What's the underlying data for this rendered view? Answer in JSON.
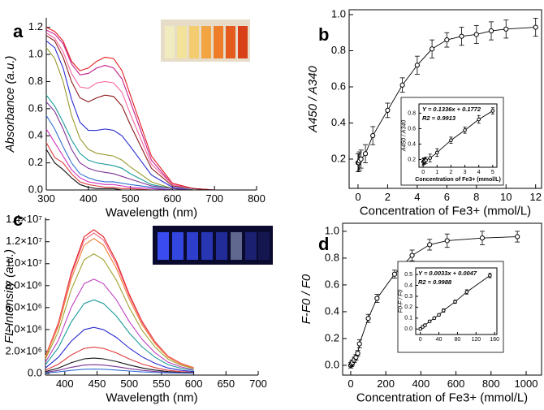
{
  "chart_data": [
    {
      "type": "line",
      "panel": "a",
      "xlabel": "Wavelength (nm)",
      "ylabel": "Absorbance (a.u.)",
      "x": [
        300,
        320,
        340,
        360,
        380,
        400,
        420,
        440,
        460,
        480,
        500,
        550,
        600,
        650,
        700
      ],
      "xlim": [
        300,
        800
      ],
      "xticks": [
        300,
        400,
        500,
        600,
        700,
        800
      ],
      "ylim": [
        0,
        1.27
      ],
      "yticks": [
        {
          "value": 0,
          "label": "0.0"
        },
        0.2,
        0.4,
        0.6,
        0.8,
        {
          "value": 1,
          "label": "1.0"
        },
        1.2
      ],
      "series": [
        {
          "color": "#e31a1c",
          "values": [
            1.2,
            1.17,
            1.1,
            0.95,
            0.88,
            0.9,
            0.95,
            0.98,
            0.97,
            0.88,
            0.7,
            0.25,
            0.05,
            0.01,
            0
          ]
        },
        {
          "color": "#c51b8a",
          "values": [
            1.18,
            1.15,
            1.08,
            0.93,
            0.85,
            0.86,
            0.9,
            0.92,
            0.9,
            0.82,
            0.65,
            0.22,
            0.04,
            0.01,
            0
          ]
        },
        {
          "color": "#f768a1",
          "values": [
            1.16,
            1.12,
            1.02,
            0.86,
            0.76,
            0.75,
            0.79,
            0.8,
            0.79,
            0.72,
            0.56,
            0.19,
            0.04,
            0.01,
            0
          ]
        },
        {
          "color": "#8b1a1a",
          "values": [
            1.14,
            1.1,
            0.98,
            0.8,
            0.68,
            0.65,
            0.68,
            0.7,
            0.69,
            0.62,
            0.48,
            0.16,
            0.03,
            0.01,
            0
          ]
        },
        {
          "color": "#2b2bd0",
          "values": [
            1.1,
            1.05,
            0.9,
            0.67,
            0.5,
            0.44,
            0.44,
            0.45,
            0.44,
            0.4,
            0.32,
            0.11,
            0.02,
            0,
            0
          ]
        },
        {
          "color": "#9a9a30",
          "values": [
            1.05,
            0.97,
            0.8,
            0.55,
            0.38,
            0.3,
            0.27,
            0.26,
            0.25,
            0.22,
            0.17,
            0.06,
            0.01,
            0,
            0
          ]
        },
        {
          "color": "#1a9a9a",
          "values": [
            0.7,
            0.62,
            0.5,
            0.37,
            0.27,
            0.22,
            0.2,
            0.19,
            0.18,
            0.16,
            0.12,
            0.04,
            0.01,
            0,
            0
          ]
        },
        {
          "color": "#7b3294",
          "values": [
            0.65,
            0.58,
            0.45,
            0.3,
            0.2,
            0.16,
            0.14,
            0.13,
            0.12,
            0.1,
            0.08,
            0.03,
            0.01,
            0,
            0
          ]
        },
        {
          "color": "#3070d0",
          "values": [
            0.55,
            0.45,
            0.32,
            0.2,
            0.12,
            0.09,
            0.07,
            0.06,
            0.06,
            0.05,
            0.04,
            0.02,
            0,
            0,
            0
          ]
        },
        {
          "color": "#d030c0",
          "values": [
            0.45,
            0.35,
            0.25,
            0.15,
            0.09,
            0.06,
            0.05,
            0.04,
            0.04,
            0.03,
            0.02,
            0.01,
            0,
            0,
            0
          ]
        },
        {
          "color": "#e04040",
          "values": [
            0.35,
            0.24,
            0.2,
            0.12,
            0.06,
            0.04,
            0.03,
            0.02,
            0.02,
            0.01,
            0.01,
            0,
            0,
            0,
            0
          ]
        },
        {
          "color": "#111111",
          "values": [
            0.3,
            0.2,
            0.15,
            0.09,
            0.04,
            0.02,
            0.01,
            0.01,
            0.01,
            0,
            0,
            0,
            0,
            0,
            0
          ]
        }
      ]
    },
    {
      "type": "scatter",
      "panel": "b",
      "xlabel": "Concentration of Fe3+ (mmol/L)",
      "ylabel": "A450 / A340",
      "x": [
        0,
        0.05,
        0.1,
        0.2,
        0.5,
        1,
        2,
        3,
        4,
        5,
        6,
        7,
        8,
        9,
        10,
        12
      ],
      "xlim": [
        -0.6,
        12.4
      ],
      "xticks": [
        0,
        2,
        4,
        6,
        8,
        10,
        12
      ],
      "ylim": [
        0.038,
        1.027
      ],
      "yticks": [
        0.2,
        0.4,
        0.6,
        0.8,
        {
          "value": 1,
          "label": "1.0"
        }
      ],
      "series": [
        {
          "color": "#000000",
          "values": [
            0.18,
            0.18,
            0.19,
            0.2,
            0.23,
            0.33,
            0.47,
            0.61,
            0.72,
            0.81,
            0.86,
            0.88,
            0.89,
            0.91,
            0.92,
            0.93
          ],
          "errors": [
            0.05,
            0.05,
            0.05,
            0.05,
            0.05,
            0.05,
            0.04,
            0.04,
            0.05,
            0.05,
            0.04,
            0.05,
            0.05,
            0.05,
            0.05,
            0.05
          ]
        }
      ],
      "inset": {
        "type": "scatter",
        "xlabel": "Concentration of Fe3+ (mmol/L)",
        "ylabel": "A450 / A340",
        "annotations": [
          "Y = 0.1336x + 0.1772",
          "R2 = 0.9913"
        ],
        "x": [
          0,
          0.05,
          0.1,
          0.2,
          0.5,
          1,
          2,
          3,
          4,
          5
        ],
        "xlim": [
          -0.3,
          5.3
        ],
        "xticks": [
          0,
          1,
          2,
          3,
          4,
          5
        ],
        "ylim": [
          0.1,
          0.92
        ],
        "yticks": [
          0.2,
          0.4,
          0.6,
          0.8
        ],
        "series": [
          {
            "color": "#000000",
            "values": [
              0.17,
              0.18,
              0.18,
              0.19,
              0.22,
              0.29,
              0.45,
              0.58,
              0.72,
              0.83
            ],
            "errors": [
              0.04,
              0.04,
              0.04,
              0.04,
              0.05,
              0.05,
              0.04,
              0.04,
              0.05,
              0.04
            ]
          }
        ]
      }
    },
    {
      "type": "line",
      "panel": "c",
      "xlabel": "Wavelength (nm)",
      "ylabel": "FL Intensity (a.u.)",
      "x": [
        370,
        390,
        410,
        430,
        445,
        460,
        480,
        500,
        520,
        540,
        560,
        580,
        600
      ],
      "xlim": [
        370,
        700
      ],
      "xticks": [
        400,
        450,
        500,
        550,
        600,
        650,
        700
      ],
      "ylim": [
        -150000,
        14200000
      ],
      "yticks": [
        {
          "value": 0,
          "label": "0.0"
        },
        {
          "value": 2000000,
          "label": "2.0×10⁶"
        },
        {
          "value": 4000000,
          "label": "4.0×10⁶"
        },
        {
          "value": 6000000,
          "label": "6.0×10⁶"
        },
        {
          "value": 8000000,
          "label": "8.0×10⁶"
        },
        {
          "value": 10000000,
          "label": "1.0×10⁷"
        },
        {
          "value": 12000000,
          "label": "1.2×10⁷"
        },
        {
          "value": 14000000,
          "label": "1.4×10⁷"
        }
      ],
      "series": [
        {
          "color": "#e31a1c",
          "values": [
            1570000.0,
            4590000.0,
            9170000.0,
            12450000.0,
            13100000.0,
            12450000.0,
            10220000.0,
            7200000.0,
            4720000.0,
            2880000.0,
            1570000.0,
            920000.0,
            520000.0
          ]
        },
        {
          "color": "#f06080",
          "values": [
            1540000.0,
            4480000.0,
            8960000.0,
            12160000.0,
            12800000.0,
            12160000.0,
            9980000.0,
            7040000.0,
            4610000.0,
            2820000.0,
            1540000.0,
            900000.0,
            510000.0
          ]
        },
        {
          "color": "#f08030",
          "values": [
            1480000.0,
            4300000.0,
            8610000.0,
            11690000.0,
            12300000.0,
            11690000.0,
            9590000.0,
            6770000.0,
            4430000.0,
            2710000.0,
            1480000.0,
            860000.0,
            490000.0
          ]
        },
        {
          "color": "#a0a030",
          "values": [
            1310000.0,
            3820000.0,
            7630000.0,
            10360000.0,
            10900000.0,
            10360000.0,
            8500000.0,
            6000000.0,
            3920000.0,
            2400000.0,
            1310000.0,
            760000.0,
            440000.0
          ]
        },
        {
          "color": "#c040c0",
          "values": [
            1030000.0,
            3010000.0,
            6020000.0,
            8170000.0,
            8600000.0,
            8170000.0,
            6710000.0,
            4730000.0,
            3100000.0,
            1890000.0,
            1030000.0,
            600000.0,
            340000.0
          ]
        },
        {
          "color": "#1a9a9a",
          "values": [
            800000.0,
            2350000.0,
            4690000.0,
            6370000.0,
            6700000.0,
            6370000.0,
            5230000.0,
            3690000.0,
            2410000.0,
            1470000.0,
            800000.0,
            470000.0,
            270000.0
          ]
        },
        {
          "color": "#2b2bd0",
          "values": [
            500000.0,
            1470000.0,
            2940000.0,
            3990000.0,
            4200000.0,
            3990000.0,
            3280000.0,
            2310000.0,
            1510000.0,
            920000.0,
            500000.0,
            290000.0,
            170000.0
          ]
        },
        {
          "color": "#e04040",
          "values": [
            290000.0,
            840000.0,
            1680000.0,
            2280000.0,
            2400000.0,
            2280000.0,
            1870000.0,
            1320000.0,
            860000.0,
            530000.0,
            290000.0,
            170000.0,
            100000.0
          ]
        },
        {
          "color": "#111111",
          "values": [
            170000.0,
            490000.0,
            980000.0,
            1330000.0,
            1400000.0,
            1330000.0,
            1090000.0,
            770000.0,
            500000.0,
            310000.0,
            170000.0,
            100000.0,
            60000.0
          ]
        },
        {
          "color": "#7b3294",
          "values": [
            100000.0,
            280000.0,
            560000.0,
            760000.0,
            800000.0,
            760000.0,
            620000.0,
            440000.0,
            290000.0,
            180000.0,
            100000.0,
            60000.0,
            30000.0
          ]
        },
        {
          "color": "#3070d0",
          "values": [
            50000.0,
            140000.0,
            280000.0,
            380000.0,
            400000.0,
            380000.0,
            310000.0,
            220000.0,
            140000.0,
            90000.0,
            50000.0,
            30000.0,
            20000.0
          ]
        }
      ]
    },
    {
      "type": "scatter",
      "panel": "d",
      "xlabel": "Concentration of Fe3+ (mmol/L)",
      "ylabel": "F-F0 / F0",
      "x": [
        0,
        5,
        10,
        20,
        30,
        40,
        50,
        100,
        150,
        250,
        350,
        450,
        550,
        750,
        950
      ],
      "xlim": [
        -46,
        1088
      ],
      "xticks": [
        0,
        200,
        400,
        600,
        800,
        1000
      ],
      "ylim": [
        -0.073,
        1.06
      ],
      "yticks": [
        {
          "value": 0,
          "label": "0.0"
        },
        0.2,
        0.4,
        0.6,
        0.8,
        {
          "value": 1,
          "label": "1.0"
        }
      ],
      "series": [
        {
          "color": "#000000",
          "values": [
            0,
            0.01,
            0.02,
            0.04,
            0.06,
            0.09,
            0.16,
            0.35,
            0.5,
            0.68,
            0.82,
            0.9,
            0.93,
            0.95,
            0.96
          ],
          "errors": [
            0.02,
            0.02,
            0.02,
            0.02,
            0.02,
            0.02,
            0.03,
            0.03,
            0.03,
            0.03,
            0.04,
            0.04,
            0.05,
            0.05,
            0.04
          ]
        }
      ],
      "inset": {
        "type": "scatter",
        "ylabel": "F0-F / F0",
        "annotations": [
          "Y = 0.0033x + 0.0047",
          "R2 = 0.9988"
        ],
        "x": [
          0,
          5,
          10,
          20,
          30,
          40,
          50,
          75,
          100,
          150
        ],
        "xlim": [
          -10,
          165
        ],
        "xticks": [
          0,
          40,
          80,
          120,
          160
        ],
        "ylim": [
          -0.05,
          0.56
        ],
        "yticks": [
          {
            "value": 0,
            "label": "0.0"
          },
          0.1,
          0.2,
          0.3,
          0.4,
          0.5
        ],
        "series": [
          {
            "color": "#000000",
            "values": [
              0,
              0.02,
              0.035,
              0.07,
              0.1,
              0.13,
              0.17,
              0.25,
              0.34,
              0.49
            ],
            "errors": [
              0.01,
              0.01,
              0.01,
              0.01,
              0.01,
              0.01,
              0.015,
              0.015,
              0.02,
              0.02
            ]
          }
        ]
      }
    }
  ]
}
